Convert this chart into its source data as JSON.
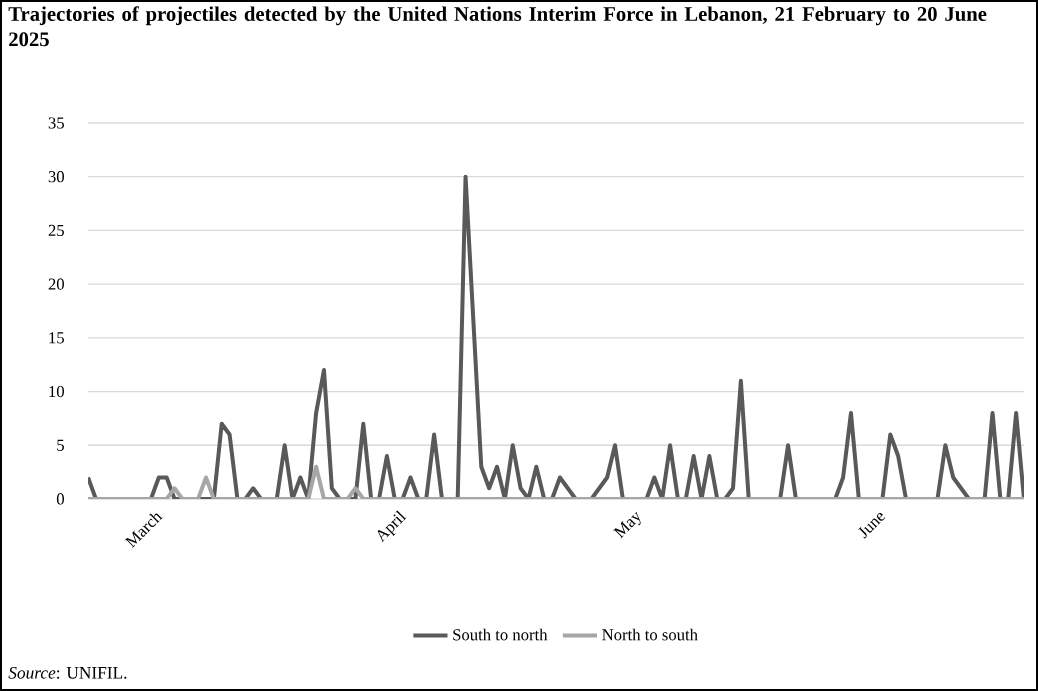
{
  "chart_data": {
    "type": "line",
    "title": "Trajectories of projectiles detected by the United Nations Interim Force in Lebanon, 21 February to 20 June 2025",
    "annotations": [
      "*Source*: UNIFIL."
    ],
    "xlim": [
      "2025-02-21",
      "2025-06-20"
    ],
    "xticks": [
      {
        "value": "2025-03-01",
        "label": "March"
      },
      {
        "value": "2025-04-01",
        "label": "April"
      },
      {
        "value": "2025-05-01",
        "label": "May"
      },
      {
        "value": "2025-06-01",
        "label": "June"
      }
    ],
    "ylim": [
      0,
      35
    ],
    "yticks": [
      0,
      5,
      10,
      15,
      20,
      25,
      30,
      35
    ],
    "grid": "y",
    "legend": "bottom",
    "series": [
      {
        "name": "South to north",
        "color": "#595959",
        "x": [
          "2025-02-21",
          "2025-02-22",
          "2025-03-01",
          "2025-03-02",
          "2025-03-03",
          "2025-03-04",
          "2025-03-09",
          "2025-03-10",
          "2025-03-11",
          "2025-03-12",
          "2025-03-13",
          "2025-03-14",
          "2025-03-15",
          "2025-03-17",
          "2025-03-18",
          "2025-03-19",
          "2025-03-20",
          "2025-03-21",
          "2025-03-22",
          "2025-03-23",
          "2025-03-24",
          "2025-03-25",
          "2025-03-27",
          "2025-03-28",
          "2025-03-29",
          "2025-03-30",
          "2025-03-31",
          "2025-04-01",
          "2025-04-02",
          "2025-04-03",
          "2025-04-04",
          "2025-04-05",
          "2025-04-06",
          "2025-04-07",
          "2025-04-09",
          "2025-04-10",
          "2025-04-12",
          "2025-04-13",
          "2025-04-14",
          "2025-04-15",
          "2025-04-16",
          "2025-04-17",
          "2025-04-18",
          "2025-04-19",
          "2025-04-20",
          "2025-04-21",
          "2025-04-22",
          "2025-04-23",
          "2025-04-24",
          "2025-04-26",
          "2025-04-27",
          "2025-04-28",
          "2025-04-29",
          "2025-04-30",
          "2025-05-03",
          "2025-05-04",
          "2025-05-05",
          "2025-05-06",
          "2025-05-07",
          "2025-05-08",
          "2025-05-09",
          "2025-05-10",
          "2025-05-11",
          "2025-05-12",
          "2025-05-13",
          "2025-05-14",
          "2025-05-15",
          "2025-05-16",
          "2025-05-20",
          "2025-05-21",
          "2025-05-22",
          "2025-05-27",
          "2025-05-28",
          "2025-05-29",
          "2025-05-30",
          "2025-06-02",
          "2025-06-03",
          "2025-06-04",
          "2025-06-05",
          "2025-06-09",
          "2025-06-10",
          "2025-06-11",
          "2025-06-12",
          "2025-06-13",
          "2025-06-15",
          "2025-06-16",
          "2025-06-17",
          "2025-06-18",
          "2025-06-19",
          "2025-06-20"
        ],
        "values": [
          2,
          0,
          0,
          2,
          2,
          0,
          0,
          7,
          6,
          0,
          0,
          1,
          0,
          0,
          5,
          0,
          2,
          0,
          8,
          12,
          1,
          0,
          0,
          7,
          0,
          0,
          4,
          0,
          0,
          2,
          0,
          0,
          6,
          0,
          0,
          30,
          3,
          1,
          3,
          0,
          5,
          1,
          0,
          3,
          0,
          0,
          2,
          1,
          0,
          0,
          1,
          2,
          5,
          0,
          0,
          2,
          0,
          5,
          0,
          0,
          4,
          0,
          4,
          0,
          0,
          1,
          11,
          0,
          0,
          5,
          0,
          0,
          2,
          8,
          0,
          0,
          6,
          4,
          0,
          0,
          5,
          2,
          1,
          0,
          0,
          8,
          0,
          0,
          8,
          0
        ]
      },
      {
        "name": "North to south",
        "color": "#a6a6a6",
        "x": [
          "2025-02-21",
          "2025-03-03",
          "2025-03-04",
          "2025-03-05",
          "2025-03-07",
          "2025-03-08",
          "2025-03-09",
          "2025-03-21",
          "2025-03-22",
          "2025-03-23",
          "2025-03-26",
          "2025-03-27",
          "2025-03-28",
          "2025-06-20"
        ],
        "values": [
          0,
          0,
          1,
          0,
          0,
          2,
          0,
          0,
          3,
          0,
          0,
          1,
          0,
          0
        ]
      }
    ]
  }
}
